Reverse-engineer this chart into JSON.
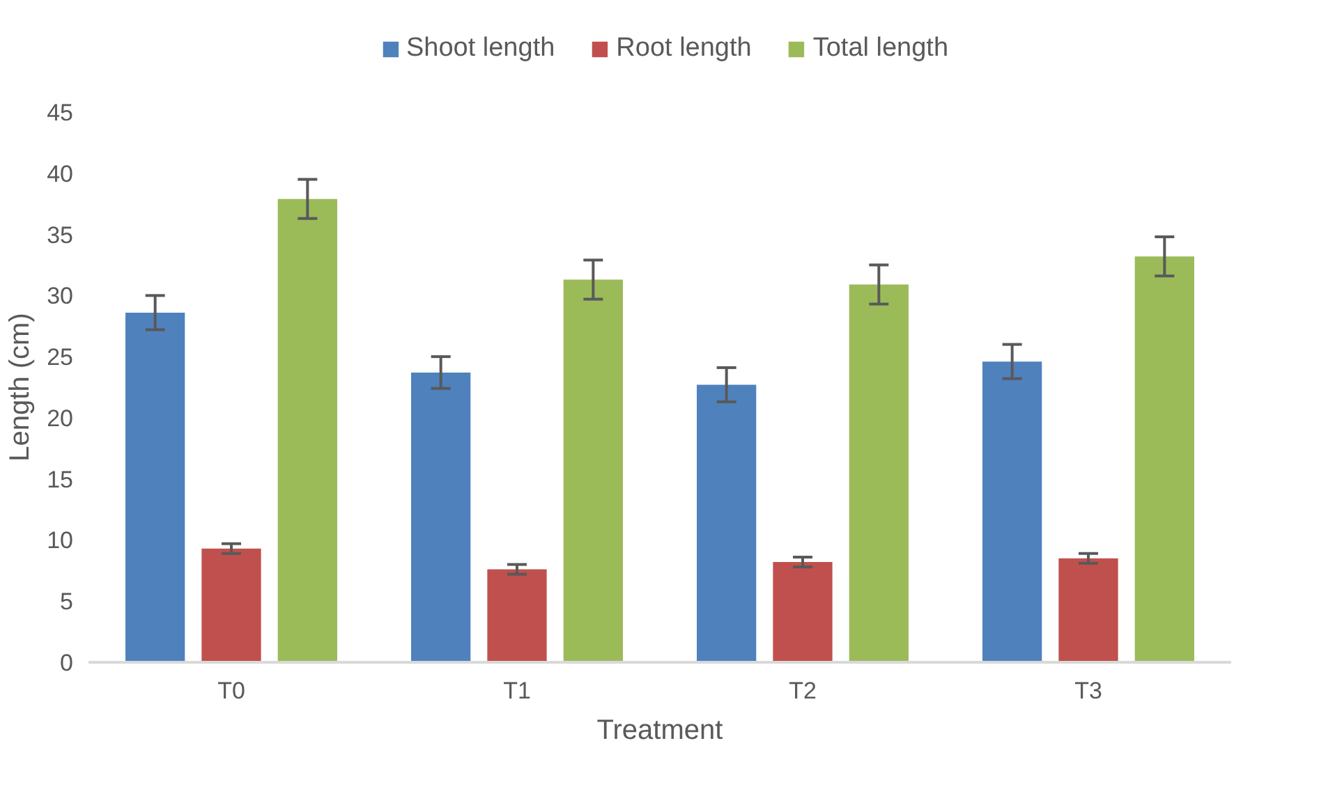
{
  "chart_data": {
    "type": "bar",
    "xlabel": "Treatment",
    "ylabel": "Length (cm)",
    "categories": [
      "T0",
      "T1",
      "T2",
      "T3"
    ],
    "series": [
      {
        "name": "Shoot length",
        "color": "#4f81bd",
        "values": [
          28.6,
          23.7,
          22.7,
          24.6
        ],
        "errors": [
          1.4,
          1.3,
          1.4,
          1.4
        ]
      },
      {
        "name": "Root length",
        "color": "#c0504d",
        "values": [
          9.3,
          7.6,
          8.2,
          8.5
        ],
        "errors": [
          0.4,
          0.4,
          0.4,
          0.4
        ]
      },
      {
        "name": "Total length",
        "color": "#9bbb59",
        "values": [
          37.9,
          31.3,
          30.9,
          33.2
        ],
        "errors": [
          1.6,
          1.6,
          1.6,
          1.6
        ]
      }
    ],
    "ylim": [
      0,
      45
    ],
    "yticks": [
      0,
      5,
      10,
      15,
      20,
      25,
      30,
      35,
      40,
      45
    ],
    "grid": false,
    "legend": "top"
  }
}
